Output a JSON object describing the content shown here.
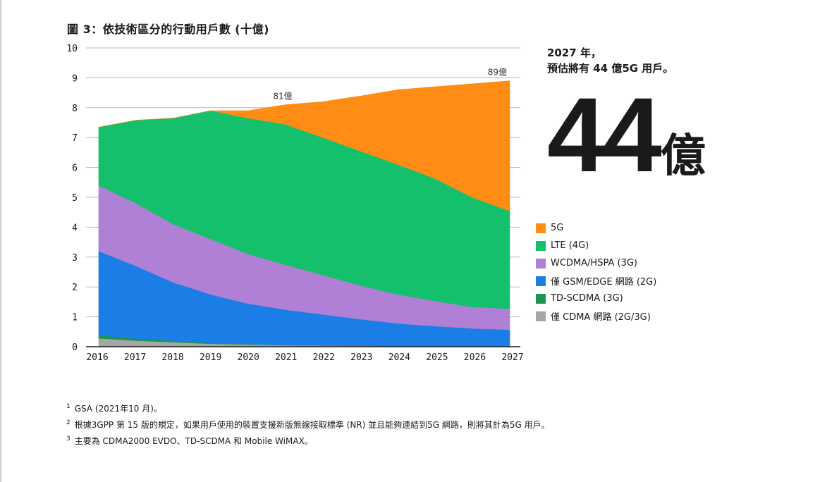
{
  "title": "圖 3：依技術區分的行動用戶數 (十億)",
  "callout": {
    "line1": "2027 年，",
    "line2": "預估將有 44 億5G 用戶。",
    "big_number": "44",
    "big_unit": "億"
  },
  "chart_data": {
    "type": "area",
    "stacked": true,
    "x": [
      "2016",
      "2017",
      "2018",
      "2019",
      "2020",
      "2021",
      "2022",
      "2023",
      "2024",
      "2025",
      "2026",
      "2027"
    ],
    "ylim": [
      0,
      10
    ],
    "yticks": [
      "0",
      "1",
      "2",
      "3",
      "4",
      "5",
      "6",
      "7",
      "8",
      "9",
      "10"
    ],
    "series": [
      {
        "name": "僅 CDMA 網路 (2G/3G)",
        "color": "#a6a6a6",
        "values": [
          0.28,
          0.2,
          0.15,
          0.1,
          0.07,
          0.05,
          0.04,
          0.03,
          0.02,
          0.02,
          0.01,
          0.01
        ]
      },
      {
        "name": "TD-SCDMA (3G)",
        "color": "#1a9650",
        "values": [
          0.1,
          0.07,
          0.05,
          0.03,
          0.02,
          0.01,
          0.01,
          0,
          0,
          0,
          0,
          0
        ]
      },
      {
        "name": "僅 GSM/EDGE 網路 (2G)",
        "color": "#1a7ee6",
        "values": [
          2.82,
          2.43,
          1.95,
          1.62,
          1.35,
          1.18,
          1.03,
          0.89,
          0.76,
          0.67,
          0.6,
          0.56
        ]
      },
      {
        "name": "WCDMA/HSPA (3G)",
        "color": "#b07fd6",
        "values": [
          2.2,
          2.1,
          1.95,
          1.85,
          1.66,
          1.5,
          1.32,
          1.13,
          0.97,
          0.84,
          0.72,
          0.7
        ]
      },
      {
        "name": "LTE (4G)",
        "color": "#14c06c",
        "values": [
          1.95,
          2.78,
          3.55,
          4.3,
          4.55,
          4.7,
          4.6,
          4.5,
          4.35,
          4.1,
          3.67,
          3.27
        ]
      },
      {
        "name": "5G",
        "color": "#ff8c14",
        "values": [
          0,
          0,
          0,
          0,
          0.25,
          0.66,
          1.2,
          1.84,
          2.5,
          3.07,
          3.8,
          4.36
        ]
      }
    ],
    "annotations": [
      {
        "x": "2021",
        "y": 8.1,
        "text": "81億"
      },
      {
        "x": "2027",
        "y": 8.9,
        "text": "89億"
      }
    ]
  },
  "legend_items": [
    {
      "label": "5G",
      "color": "#ff8c14"
    },
    {
      "label": "LTE (4G)",
      "color": "#14c06c"
    },
    {
      "label": "WCDMA/HSPA (3G)",
      "color": "#b07fd6"
    },
    {
      "label": "僅 GSM/EDGE 網路 (2G)",
      "color": "#1a7ee6"
    },
    {
      "label": "TD-SCDMA (3G)",
      "color": "#1a9650"
    },
    {
      "label": "僅 CDMA 網路 (2G/3G)",
      "color": "#a6a6a6"
    }
  ],
  "footnotes": [
    {
      "num": "1",
      "text": "GSA (2021年10 月)。"
    },
    {
      "num": "2",
      "text": "根據3GPP 第 15 版的規定，如果用戶使用的裝置支援新版無線接取標準 (NR) 並且能夠連結到5G 網路，則將其計為5G 用戶。"
    },
    {
      "num": "3",
      "text": "主要為 CDMA2000 EVDO、TD-SCDMA 和 Mobile WiMAX。"
    }
  ]
}
